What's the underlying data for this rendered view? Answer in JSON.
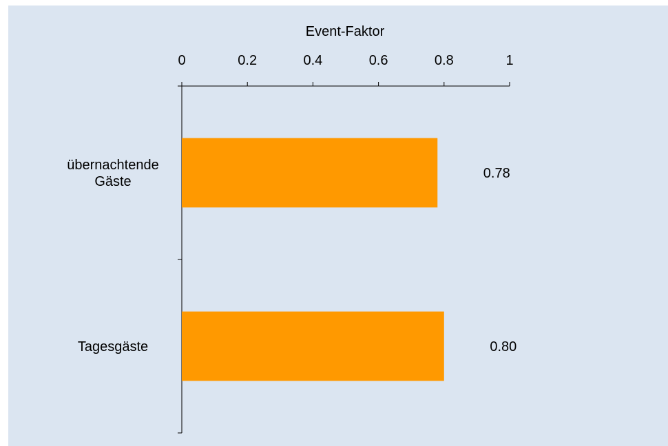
{
  "chart_data": {
    "type": "bar",
    "orientation": "horizontal",
    "categories": [
      "übernachtende Gäste",
      "Tagesgäste"
    ],
    "category_lines": [
      [
        "übernachtende",
        "Gäste"
      ],
      [
        "Tagesgäste"
      ]
    ],
    "values": [
      0.78,
      0.8
    ],
    "value_labels": [
      "0.78",
      "0.80"
    ],
    "xlabel": "Event-Faktor",
    "xlim": [
      0,
      1
    ],
    "ticks": [
      0,
      0.2,
      0.4,
      0.6,
      0.8,
      1
    ],
    "tick_labels": [
      "0",
      "0.2",
      "0.4",
      "0.6",
      "0.8",
      "1"
    ],
    "x_axis_position": "top",
    "grid": false,
    "legend": "none",
    "bar_color": "#ff9900",
    "background_color": "#dbe5f1"
  }
}
